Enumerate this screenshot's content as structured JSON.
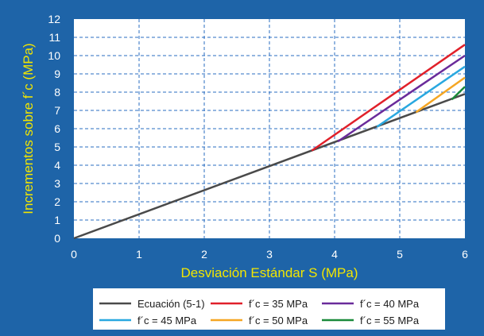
{
  "chart_data": {
    "type": "line",
    "title": "",
    "xlabel": "Desviación Estándar S (MPa)",
    "ylabel": "Incrementos sobre f´c (MPa)",
    "xlim": [
      0,
      6
    ],
    "ylim": [
      0,
      12
    ],
    "x_ticks": [
      "0",
      "1",
      "2",
      "3",
      "4",
      "5",
      "6"
    ],
    "y_ticks": [
      "0",
      "1",
      "2",
      "3",
      "4",
      "5",
      "6",
      "7",
      "8",
      "9",
      "10",
      "11",
      "12"
    ],
    "grid": true,
    "legend_position": "bottom",
    "series": [
      {
        "name": "Ecuación (5-1)",
        "color": "#4a4a4a",
        "points": [
          [
            0,
            0
          ],
          [
            6,
            7.9
          ]
        ]
      },
      {
        "name": "f´c = 35 MPa",
        "color": "#e0202a",
        "points": [
          [
            3.65,
            4.8
          ],
          [
            6,
            10.6
          ]
        ]
      },
      {
        "name": "f´c = 40 MPa",
        "color": "#6a2b9a",
        "points": [
          [
            4.05,
            5.3
          ],
          [
            6,
            10.0
          ]
        ]
      },
      {
        "name": "f´c = 45 MPa",
        "color": "#29a8e0",
        "points": [
          [
            4.65,
            6.1
          ],
          [
            6,
            9.4
          ]
        ]
      },
      {
        "name": "f´c = 50 MPa",
        "color": "#f5a623",
        "points": [
          [
            5.25,
            6.9
          ],
          [
            6,
            8.8
          ]
        ]
      },
      {
        "name": "f´c = 55 MPa",
        "color": "#1a8a3a",
        "points": [
          [
            5.8,
            7.6
          ],
          [
            6,
            8.3
          ]
        ]
      }
    ]
  }
}
